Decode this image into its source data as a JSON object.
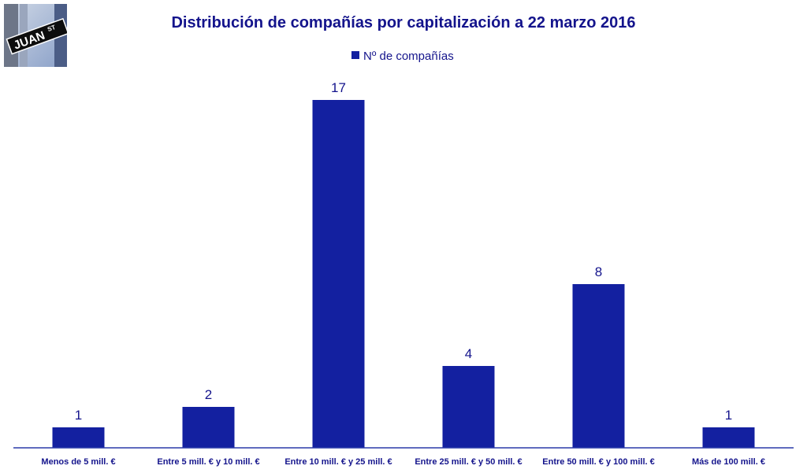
{
  "logo": {
    "text": "JUAN",
    "superscript": "ST"
  },
  "colors": {
    "bar": "#1320a0",
    "text": "#14148c",
    "axis": "#2a3aa8"
  },
  "chart_data": {
    "type": "bar",
    "title": "Distribución de compañías por capitalización a 22 marzo 2016",
    "legend": "top",
    "grid": false,
    "categories": [
      "Menos de 5 mill. €",
      "Entre 5 mill. € y 10 mill. €",
      "Entre 10 mill. € y 25 mill. €",
      "Entre 25 mill. € y 50 mill. €",
      "Entre 50 mill. € y 100 mill. €",
      "Más de 100 mill. €"
    ],
    "series": [
      {
        "name": "Nº de compañías",
        "values": [
          1,
          2,
          17,
          4,
          8,
          1
        ]
      }
    ],
    "ylim": [
      0,
      17
    ]
  }
}
